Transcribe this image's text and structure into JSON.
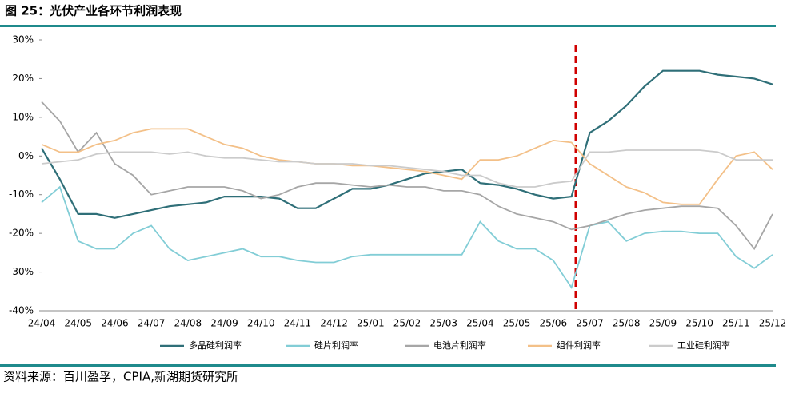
{
  "chart_data": {
    "type": "line",
    "title": "图 25：光伏产业各环节利润表现",
    "source": "资料来源：百川盈孚，CPIA,新湖期货研究所",
    "categories": [
      "24/04",
      null,
      "24/05",
      null,
      "24/06",
      null,
      "24/07",
      null,
      "24/08",
      null,
      "24/09",
      null,
      "24/10",
      null,
      "24/11",
      null,
      "24/12",
      null,
      "25/01",
      null,
      "25/02",
      null,
      "25/03",
      null,
      "25/04",
      null,
      "25/05",
      null,
      "25/06",
      null,
      "25/07",
      null,
      "25/08",
      null,
      "25/09",
      null,
      "25/10",
      null,
      "25/11",
      null,
      "25/12"
    ],
    "ylim": [
      -40,
      30
    ],
    "yticks": [
      {
        "value": -40,
        "label": "-40%"
      },
      {
        "value": -30,
        "label": "-30%"
      },
      {
        "value": -20,
        "label": "-20%"
      },
      {
        "value": -10,
        "label": "-10%"
      },
      {
        "value": 0,
        "label": "0%"
      },
      {
        "value": 10,
        "label": "10%"
      },
      {
        "value": 20,
        "label": "20%"
      },
      {
        "value": 30,
        "label": "30%"
      }
    ],
    "grid": false,
    "legend": "bottom",
    "series": [
      {
        "name": "多晶硅利润率",
        "color": "#2f6f78",
        "values": [
          2,
          -6,
          -15,
          -15,
          -16,
          -15,
          -14,
          -13,
          -12.5,
          -12,
          -10.5,
          -10.5,
          -10.5,
          -11,
          -13.5,
          -13.5,
          -11,
          -8.5,
          -8.5,
          -7.5,
          -6,
          -4.5,
          -4,
          -3.5,
          -7,
          -7.5,
          -8.5,
          -10,
          -11,
          -10.5,
          6,
          9,
          13,
          18,
          22,
          22,
          22,
          21,
          20.5,
          20,
          18.5
        ]
      },
      {
        "name": "硅片利润率",
        "color": "#82cdd6",
        "values": [
          -12,
          -8,
          -22,
          -24,
          -24,
          -20,
          -18,
          -24,
          -27,
          -26,
          -25,
          -24,
          -26,
          -26,
          -27,
          -27.5,
          -27.5,
          -26,
          -25.5,
          -25.5,
          -25.5,
          -25.5,
          -25.5,
          -25.5,
          -17,
          -22,
          -24,
          -24,
          -27,
          -34,
          -18,
          -17,
          -22,
          -20,
          -19.5,
          -19.5,
          -20,
          -20,
          -26,
          -29,
          -25.5
        ]
      },
      {
        "name": "电池片利润率",
        "color": "#a6a6a6",
        "values": [
          14,
          9,
          1,
          6,
          -2,
          -5,
          -10,
          -9,
          -8,
          -8,
          -8,
          -9,
          -11,
          -10,
          -8,
          -7,
          -7,
          -7.5,
          -8,
          -7.5,
          -8,
          -8,
          -9,
          -9,
          -10,
          -13,
          -15,
          -16,
          -17,
          -19,
          -18,
          -16.5,
          -15,
          -14,
          -13.5,
          -13,
          -13,
          -13.5,
          -18,
          -24,
          -15
        ]
      },
      {
        "name": "组件利润率",
        "color": "#f3c088",
        "values": [
          3,
          1,
          1,
          3,
          4,
          6,
          7,
          7,
          7,
          5,
          3,
          2,
          0,
          -1,
          -1.5,
          -2,
          -2,
          -2.5,
          -2.5,
          -3,
          -3.5,
          -4,
          -5,
          -6,
          -1,
          -1,
          0,
          2,
          4,
          3.5,
          -2,
          -5,
          -8,
          -9.5,
          -12,
          -12.5,
          -12.5,
          -6,
          0,
          1,
          -3.5
        ]
      },
      {
        "name": "工业硅利润率",
        "color": "#cbcbcb",
        "values": [
          -2,
          -1.5,
          -1,
          0.5,
          1,
          1,
          1,
          0.5,
          1,
          0,
          -0.5,
          -0.5,
          -1,
          -1.5,
          -1.5,
          -2,
          -2,
          -2,
          -2.5,
          -2.5,
          -3,
          -3.5,
          -4,
          -5,
          -5,
          -7,
          -8,
          -8,
          -7,
          -6.5,
          1,
          1,
          1.5,
          1.5,
          1.5,
          1.5,
          1.5,
          1,
          -1,
          -1,
          -1
        ]
      }
    ]
  }
}
